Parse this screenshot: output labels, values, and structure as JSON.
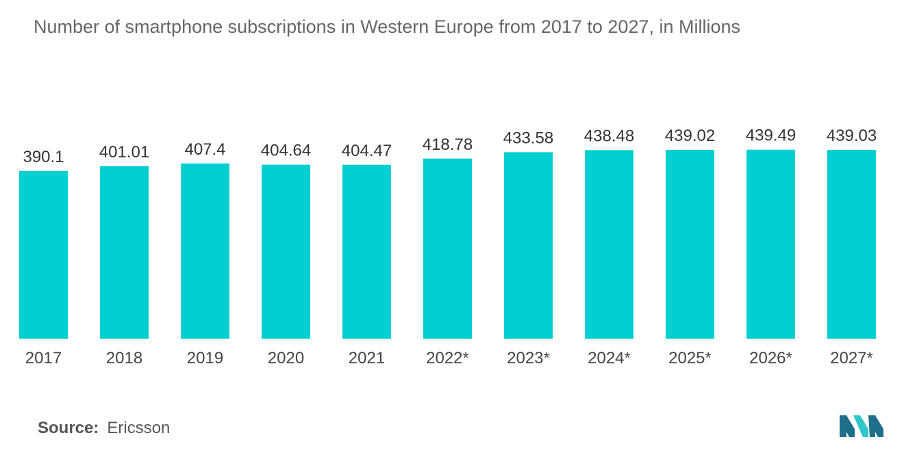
{
  "chart_data": {
    "type": "bar",
    "title": "Number of smartphone subscriptions in Western Europe from 2017 to 2027, in Millions",
    "categories": [
      "2017",
      "2018",
      "2019",
      "2020",
      "2021",
      "2022*",
      "2023*",
      "2024*",
      "2025*",
      "2026*",
      "2027*"
    ],
    "values": [
      390.1,
      401.01,
      407.4,
      404.64,
      404.47,
      418.78,
      433.58,
      438.48,
      439.02,
      439.49,
      439.03
    ],
    "value_labels": [
      "390.1",
      "401.01",
      "407.4",
      "404.64",
      "404.47",
      "418.78",
      "433.58",
      "438.48",
      "439.02",
      "439.49",
      "439.03"
    ],
    "xlabel": "",
    "ylabel": "",
    "grid": false,
    "legend": "none",
    "bar_color": "#00CFD1"
  },
  "footer": {
    "source_label": "Source:",
    "source_value": "Ericsson"
  },
  "logo": {
    "icon": "mordor-intelligence-logo-icon",
    "colors": [
      "#1F6F8B",
      "#2FC6CC"
    ]
  }
}
